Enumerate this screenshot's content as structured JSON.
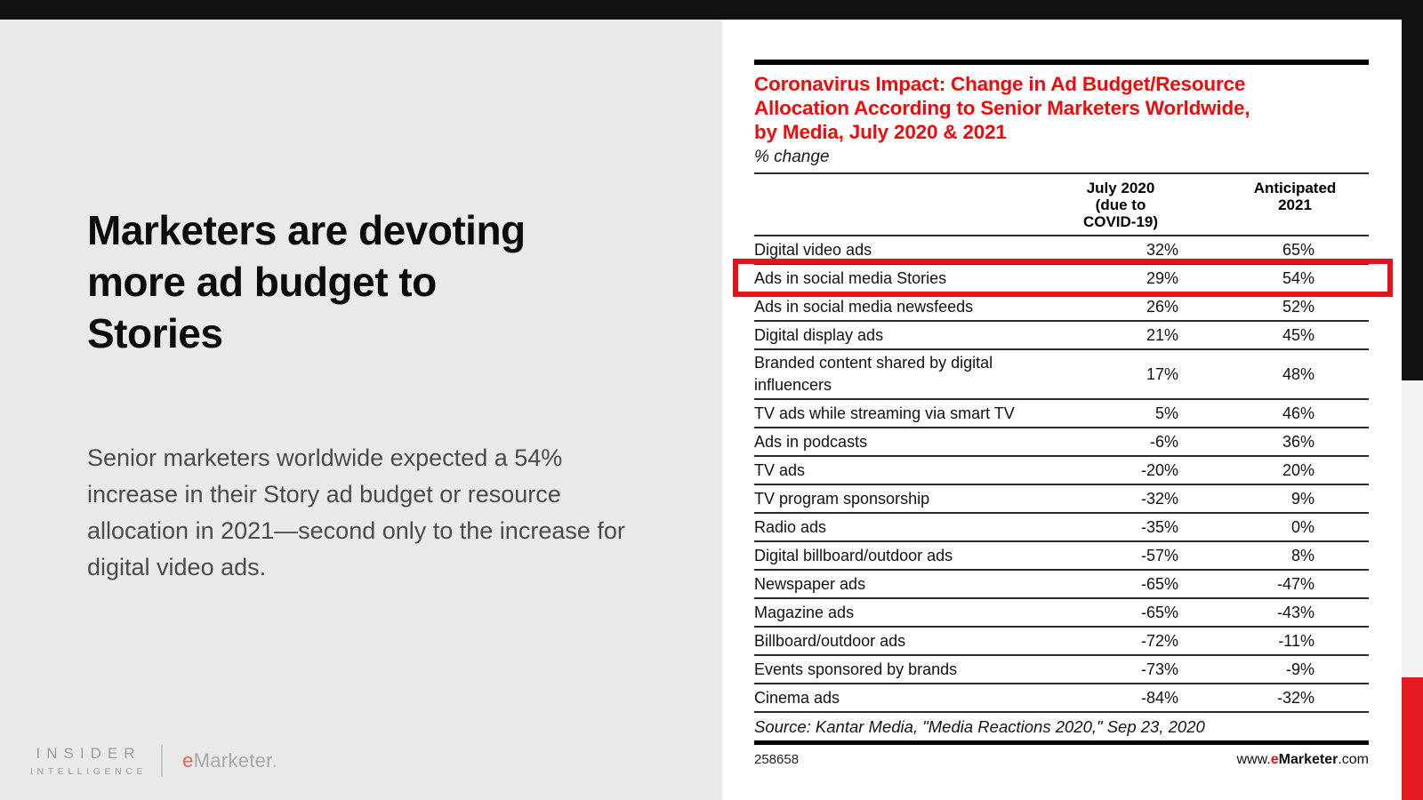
{
  "slide": {
    "headline_lines": [
      "Marketers are devoting",
      "more ad budget to",
      "Stories"
    ],
    "body_text": "Senior marketers worldwide expected a 54% increase in their Story ad budget or resource allocation in 2021—second only to the increase for digital video ads.",
    "logo": {
      "brand_top": "INSIDER",
      "brand_bottom": "INTELLIGENCE",
      "emarketer_e": "e",
      "emarketer_rest": "Marketer",
      "emarketer_dot": "."
    }
  },
  "chart": {
    "title_lines": [
      "Coronavirus Impact: Change in Ad Budget/Resource",
      "Allocation According to Senior Marketers Worldwide,",
      "by Media, July 2020 & 2021"
    ],
    "chart_id": "258658",
    "site": {
      "prefix": "www.",
      "e": "e",
      "brand": "Marketer",
      "suffix": ".com"
    }
  },
  "chart_data": {
    "type": "table",
    "title": "Coronavirus Impact: Change in Ad Budget/Resource Allocation According to Senior Marketers Worldwide, by Media, July 2020 & 2021",
    "subtitle": "% change",
    "columns": [
      "July 2020 (due to COVID-19)",
      "Anticipated 2021"
    ],
    "rows": [
      {
        "label": "Digital video ads",
        "july_2020": "32%",
        "anticipated_2021": "65%",
        "highlighted": false
      },
      {
        "label": "Ads in social media Stories",
        "july_2020": "29%",
        "anticipated_2021": "54%",
        "highlighted": true
      },
      {
        "label": "Ads in social media newsfeeds",
        "july_2020": "26%",
        "anticipated_2021": "52%",
        "highlighted": false
      },
      {
        "label": "Digital display ads",
        "july_2020": "21%",
        "anticipated_2021": "45%",
        "highlighted": false
      },
      {
        "label": "Branded content shared by digital influencers",
        "july_2020": "17%",
        "anticipated_2021": "48%",
        "highlighted": false
      },
      {
        "label": "TV ads while streaming via smart TV",
        "july_2020": "5%",
        "anticipated_2021": "46%",
        "highlighted": false
      },
      {
        "label": "Ads in podcasts",
        "july_2020": "-6%",
        "anticipated_2021": "36%",
        "highlighted": false
      },
      {
        "label": "TV ads",
        "july_2020": "-20%",
        "anticipated_2021": "20%",
        "highlighted": false
      },
      {
        "label": "TV program sponsorship",
        "july_2020": "-32%",
        "anticipated_2021": "9%",
        "highlighted": false
      },
      {
        "label": "Radio ads",
        "july_2020": "-35%",
        "anticipated_2021": "0%",
        "highlighted": false
      },
      {
        "label": "Digital billboard/outdoor ads",
        "july_2020": "-57%",
        "anticipated_2021": "8%",
        "highlighted": false
      },
      {
        "label": "Newspaper ads",
        "july_2020": "-65%",
        "anticipated_2021": "-47%",
        "highlighted": false
      },
      {
        "label": "Magazine ads",
        "july_2020": "-65%",
        "anticipated_2021": "-43%",
        "highlighted": false
      },
      {
        "label": "Billboard/outdoor ads",
        "july_2020": "-72%",
        "anticipated_2021": "-11%",
        "highlighted": false
      },
      {
        "label": "Events sponsored by brands",
        "july_2020": "-73%",
        "anticipated_2021": "-9%",
        "highlighted": false
      },
      {
        "label": "Cinema ads",
        "july_2020": "-84%",
        "anticipated_2021": "-32%",
        "highlighted": false
      }
    ],
    "source": "Source: Kantar Media, \"Media Reactions 2020,\" Sep 23, 2020"
  },
  "colors": {
    "title_red": "#ee0b0b",
    "highlight_red": "#e3131b",
    "strip_red": "#e31a22",
    "top_bar_black": "#121212",
    "left_bg_gray": "#e9e9e9",
    "strip_gray": "#f3f3f3",
    "body_text_gray": "#4b4b4b",
    "logo_gray": "#9e9e9e",
    "logo_e_red": "#e2645f"
  }
}
